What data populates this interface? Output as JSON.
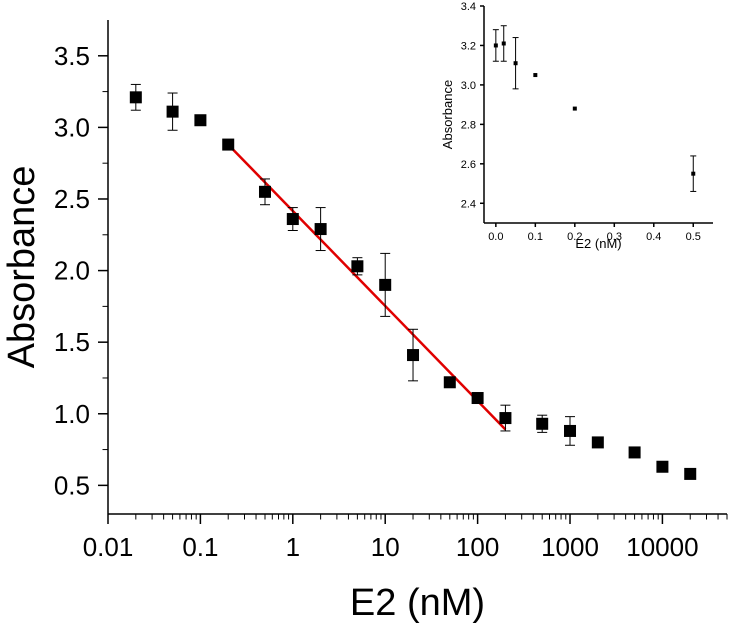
{
  "chart_data": [
    {
      "type": "scatter",
      "xlabel": "E2 (nM)",
      "ylabel": "Absorbance",
      "xscale": "log",
      "xlim": [
        0.01,
        50000
      ],
      "ylim": [
        0.3,
        3.75
      ],
      "xticks": [
        0.01,
        0.1,
        1,
        10,
        100,
        1000,
        10000
      ],
      "xtick_labels": [
        "0.01",
        "0.1",
        "1",
        "10",
        "100",
        "1000",
        "10000"
      ],
      "yticks": [
        0.5,
        1.0,
        1.5,
        2.0,
        2.5,
        3.0,
        3.5
      ],
      "ytick_labels": [
        "0.5",
        "1.0",
        "1.5",
        "2.0",
        "2.5",
        "3.0",
        "3.5"
      ],
      "grid": false,
      "series": [
        {
          "x": [
            0.02,
            0.05,
            0.1,
            0.2,
            0.5,
            1,
            2,
            5,
            10,
            20,
            50,
            100,
            200,
            500,
            1000,
            2000,
            5000,
            10000,
            20000
          ],
          "y": [
            3.21,
            3.11,
            3.05,
            2.88,
            2.55,
            2.36,
            2.29,
            2.03,
            1.9,
            1.41,
            1.22,
            1.11,
            0.97,
            0.93,
            0.88,
            0.8,
            0.73,
            0.63,
            0.58
          ],
          "err": [
            0.09,
            0.13,
            0.0,
            0.0,
            0.09,
            0.08,
            0.15,
            0.06,
            0.22,
            0.18,
            0.0,
            0.0,
            0.09,
            0.06,
            0.1,
            0.0,
            0.0,
            0.0,
            0.0
          ],
          "color": "#000000",
          "marker": "square"
        }
      ],
      "fit_line": {
        "x": [
          0.2,
          200
        ],
        "y": [
          2.88,
          0.89
        ],
        "color": "#e00000"
      }
    },
    {
      "type": "scatter",
      "xlabel": "E2 (nM)",
      "ylabel": "Absorbance",
      "xlim": [
        -0.03,
        0.55
      ],
      "ylim": [
        2.3,
        3.4
      ],
      "xticks": [
        0.0,
        0.1,
        0.2,
        0.3,
        0.4,
        0.5
      ],
      "xtick_labels": [
        "0.0",
        "0.1",
        "0.2",
        "0.3",
        "0.4",
        "0.5"
      ],
      "yticks": [
        2.4,
        2.6,
        2.8,
        3.0,
        3.2,
        3.4
      ],
      "ytick_labels": [
        "2.4",
        "2.6",
        "2.8",
        "3.0",
        "3.2",
        "3.4"
      ],
      "grid": false,
      "series": [
        {
          "x": [
            0.0,
            0.02,
            0.05,
            0.1,
            0.2,
            0.5
          ],
          "y": [
            3.2,
            3.21,
            3.11,
            3.05,
            2.88,
            2.55
          ],
          "err": [
            0.08,
            0.09,
            0.13,
            0.0,
            0.0,
            0.09
          ],
          "color": "#000000",
          "marker": "square"
        }
      ]
    }
  ]
}
